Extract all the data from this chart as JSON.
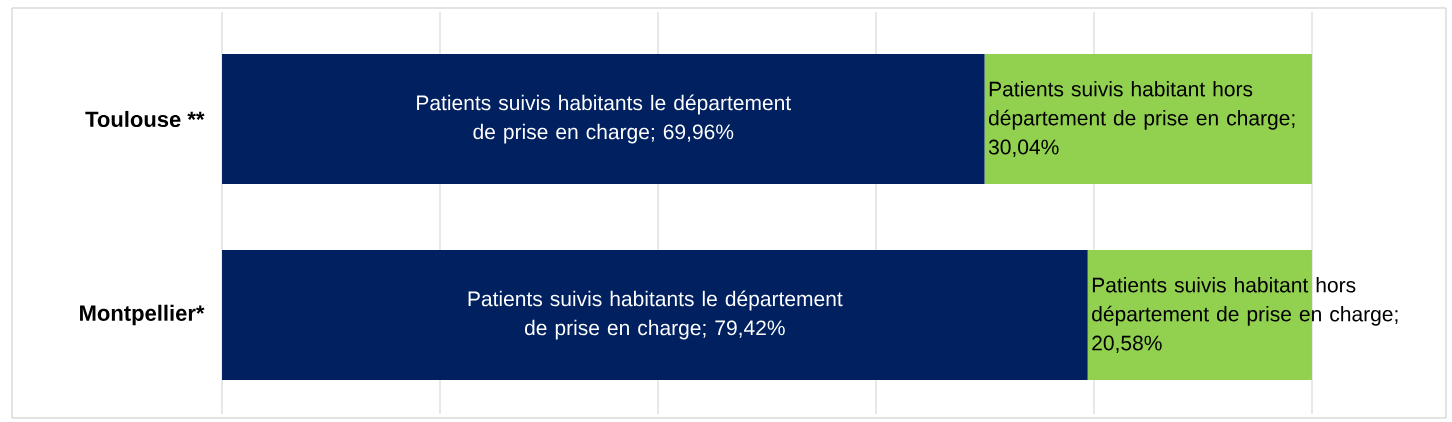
{
  "chart_data": {
    "type": "bar",
    "orientation": "horizontal",
    "stacked": true,
    "categories": [
      "Toulouse **",
      "Montpellier*"
    ],
    "series": [
      {
        "color": "#002060",
        "values": [
          69.96,
          79.42
        ],
        "value_labels": [
          "Patients suivis habitants le département de prise en charge; 69,96%",
          "Patients suivis habitants le département de prise en charge; 79,42%"
        ]
      },
      {
        "color": "#92d050",
        "values": [
          30.04,
          20.58
        ],
        "value_labels": [
          "Patients suivis habitant hors département de prise en charge; 30,04%",
          "Patients suivis habitant hors département de prise en charge; 20,58%"
        ]
      }
    ],
    "grid": "x",
    "tick_labels": "y"
  }
}
